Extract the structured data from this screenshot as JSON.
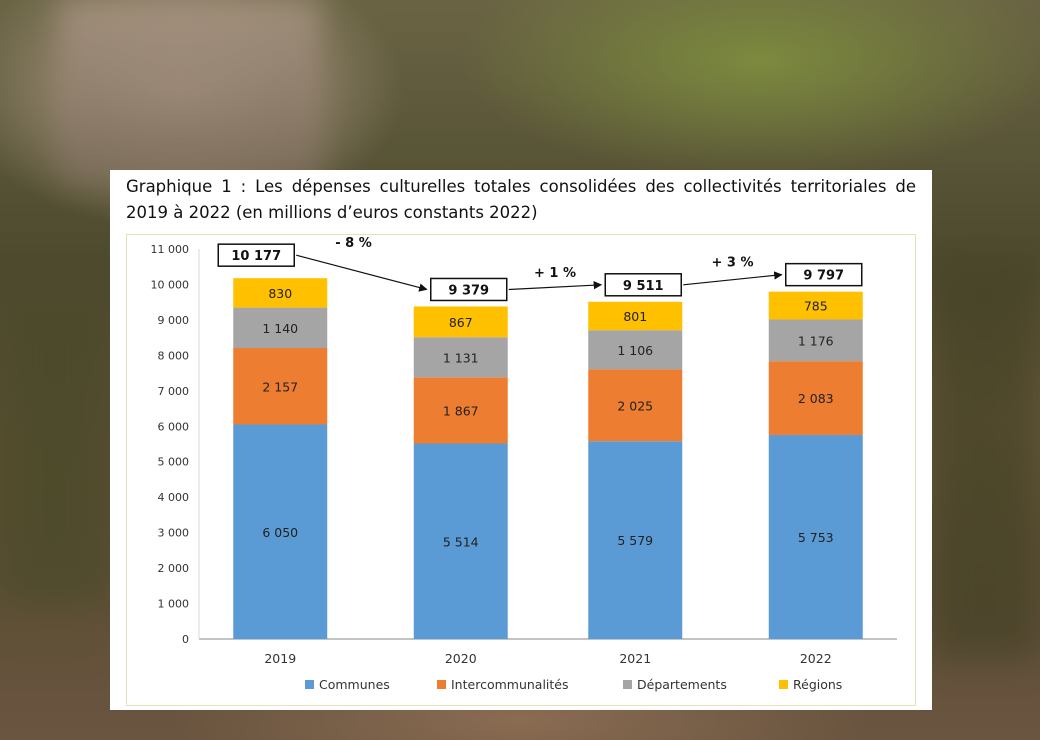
{
  "chart_data": {
    "type": "bar",
    "stacked": true,
    "title": "Graphique 1 : Les dépenses culturelles totales consolidées des collectivités territoriales de 2019 à 2022 (en millions d’euros constants 2022)",
    "categories": [
      "2019",
      "2020",
      "2021",
      "2022"
    ],
    "series": [
      {
        "name": "Communes",
        "color": "#5b9bd5",
        "values": [
          6050,
          5514,
          5579,
          5753
        ],
        "labels": [
          "6 050",
          "5 514",
          "5 579",
          "5 753"
        ]
      },
      {
        "name": "Intercommunalités",
        "color": "#ed7d31",
        "values": [
          2157,
          1867,
          2025,
          2083
        ],
        "labels": [
          "2 157",
          "1 867",
          "2 025",
          "2 083"
        ]
      },
      {
        "name": "Départements",
        "color": "#a5a5a5",
        "values": [
          1140,
          1131,
          1106,
          1176
        ],
        "labels": [
          "1 140",
          "1 131",
          "1 106",
          "1 176"
        ]
      },
      {
        "name": "Régions",
        "color": "#ffc000",
        "values": [
          830,
          867,
          801,
          785
        ],
        "labels": [
          "830",
          "867",
          "801",
          "785"
        ]
      }
    ],
    "totals": [
      10177,
      9379,
      9511,
      9797
    ],
    "total_labels": [
      "10 177",
      "9 379",
      "9 511",
      "9 797"
    ],
    "changes": [
      "- 8 %",
      "+ 1 %",
      "+ 3 %"
    ],
    "ylim": [
      0,
      11000
    ],
    "yticks": [
      0,
      1000,
      2000,
      3000,
      4000,
      5000,
      6000,
      7000,
      8000,
      9000,
      10000,
      11000
    ],
    "ytick_labels": [
      "0",
      "1 000",
      "2 000",
      "3 000",
      "4 000",
      "5 000",
      "6 000",
      "7 000",
      "8 000",
      "9 000",
      "10 000",
      "11 000"
    ],
    "xlabel": "",
    "ylabel": "",
    "legend_position": "bottom"
  }
}
